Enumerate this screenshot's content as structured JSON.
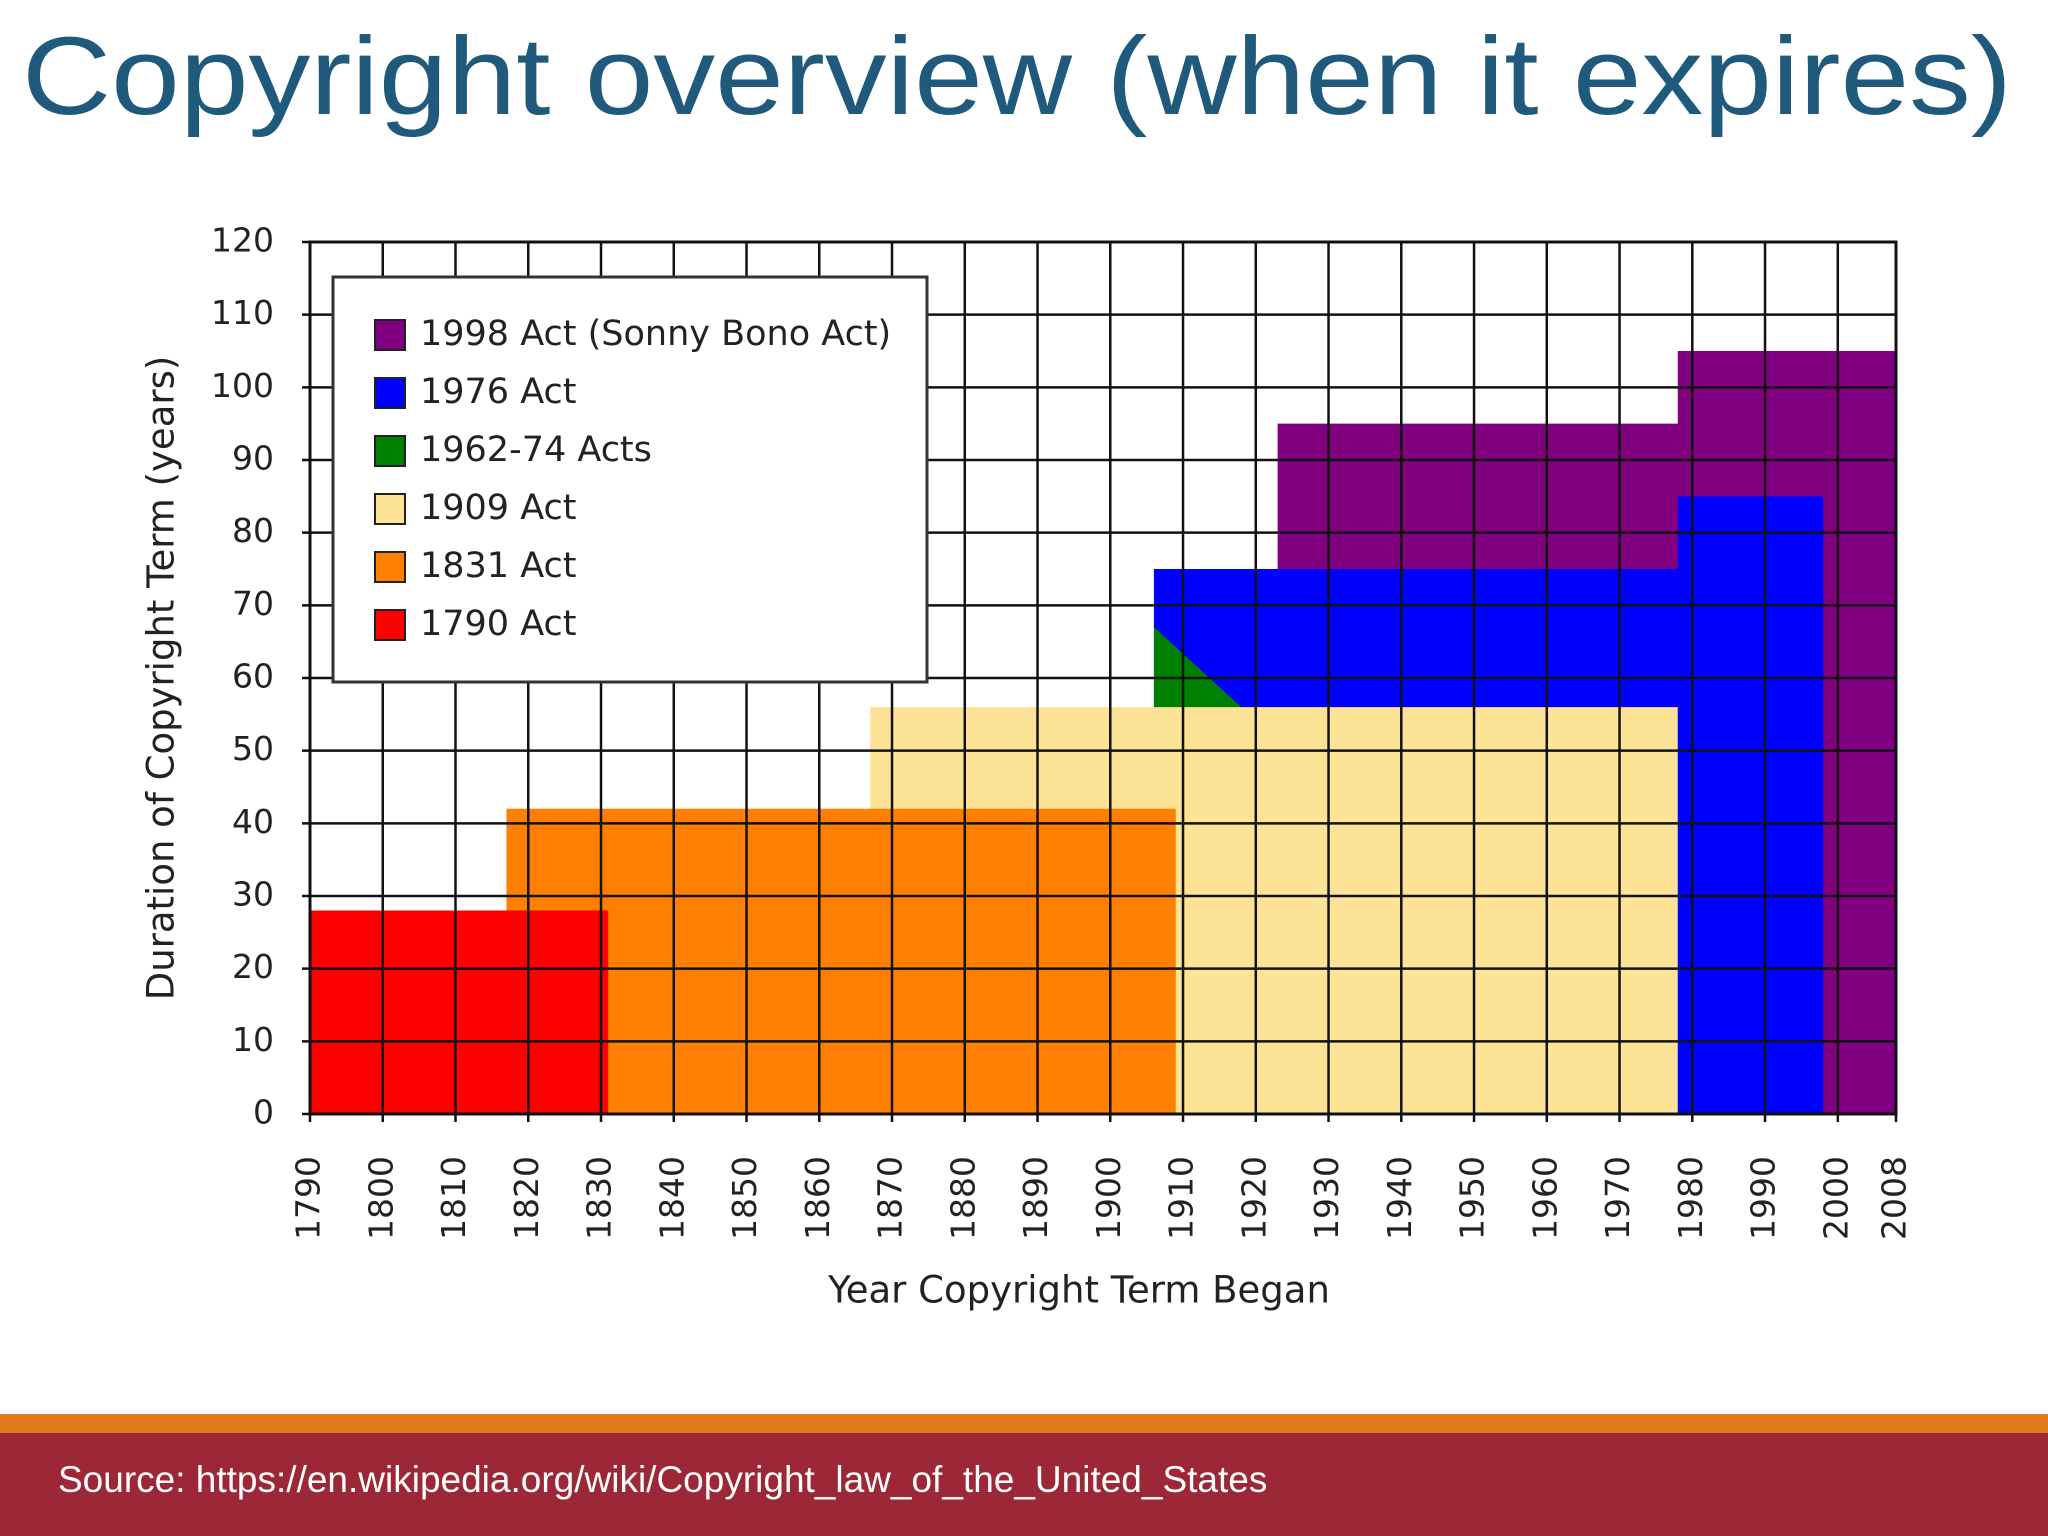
{
  "title": "Copyright overview (when it expires)",
  "chart_data": {
    "type": "step-area",
    "xlabel": "Year Copyright Term Began",
    "ylabel": "Duration of Copyright Term (years)",
    "xlim": [
      1790,
      2008
    ],
    "xticks": [
      1790,
      1800,
      1810,
      1820,
      1830,
      1840,
      1850,
      1860,
      1870,
      1880,
      1890,
      1900,
      1910,
      1920,
      1930,
      1940,
      1950,
      1960,
      1970,
      1980,
      1990,
      2000,
      2008
    ],
    "ylim": [
      0,
      120
    ],
    "yticks": [
      0,
      10,
      20,
      30,
      40,
      50,
      60,
      70,
      80,
      90,
      100,
      110,
      120
    ],
    "grid": true,
    "legend": "upper left",
    "series": [
      {
        "name": "1998 Act (Sonny Bono Act)",
        "color": "#800080",
        "x": [
          1923,
          1978,
          1978,
          2008
        ],
        "values": [
          95,
          95,
          105,
          105
        ]
      },
      {
        "name": "1976 Act",
        "color": "#0000ff",
        "x": [
          1906,
          1978,
          1978,
          1998
        ],
        "values": [
          75,
          75,
          85,
          85
        ]
      },
      {
        "name": "1962-74 Acts",
        "color": "#008000",
        "x": [
          1906,
          1918
        ],
        "values": [
          67,
          56
        ]
      },
      {
        "name": "1909 Act",
        "color": "#fde395",
        "x": [
          1867,
          1978
        ],
        "values": [
          56,
          56
        ]
      },
      {
        "name": "1831 Act",
        "color": "#ff8000",
        "x": [
          1817,
          1909
        ],
        "values": [
          42,
          42
        ]
      },
      {
        "name": "1790 Act",
        "color": "#ff0000",
        "x": [
          1790,
          1831
        ],
        "values": [
          28,
          28
        ]
      }
    ]
  },
  "footer": {
    "source": "Source: https://en.wikipedia.org/wiki/Copyright_law_of_the_United_States"
  }
}
